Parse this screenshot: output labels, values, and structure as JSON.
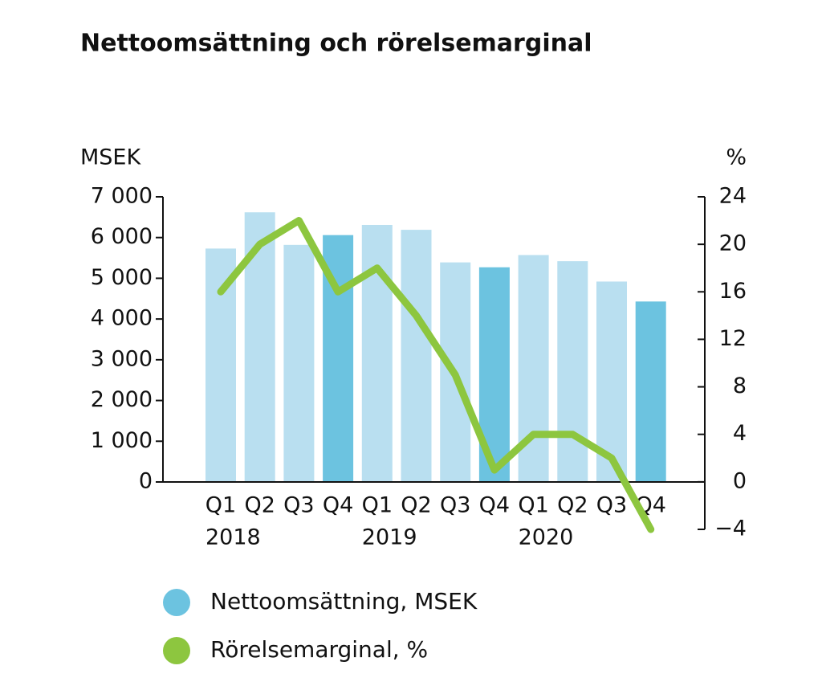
{
  "chart_data": {
    "type": "bar-line",
    "title": "Nettoomsättning och rörelsemarginal",
    "y_label": "MSEK",
    "y2_label": "%",
    "categories": [
      "Q1",
      "Q2",
      "Q3",
      "Q4",
      "Q1",
      "Q2",
      "Q3",
      "Q4",
      "Q1",
      "Q2",
      "Q3",
      "Q4"
    ],
    "groups": [
      "2018",
      "2019",
      "2020"
    ],
    "series": [
      {
        "name": "Nettoomsättning, MSEK",
        "type": "bar",
        "color": "#6cc3e0",
        "colors": [
          "#b9dff0",
          "#b9dff0",
          "#b9dff0",
          "#6cc3e0",
          "#b9dff0",
          "#b9dff0",
          "#b9dff0",
          "#6cc3e0",
          "#b9dff0",
          "#b9dff0",
          "#b9dff0",
          "#6cc3e0"
        ],
        "values": [
          5730,
          6620,
          5820,
          6060,
          6310,
          6190,
          5390,
          5270,
          5570,
          5420,
          4920,
          4430
        ]
      },
      {
        "name": "Rörelsemarginal, %",
        "type": "line",
        "axis": "y2",
        "color": "#8dc63f",
        "values": [
          16,
          20,
          22,
          16,
          18,
          14,
          9,
          1,
          4,
          4,
          2,
          -4
        ]
      }
    ],
    "ylim": [
      0,
      7000
    ],
    "yticks": [
      0,
      {
        "value": 1000,
        "label": "1 000"
      },
      {
        "value": 2000,
        "label": "2 000"
      },
      {
        "value": 3000,
        "label": "3 000"
      },
      {
        "value": 4000,
        "label": "4 000"
      },
      {
        "value": 5000,
        "label": "5 000"
      },
      {
        "value": 6000,
        "label": "6 000"
      },
      {
        "value": 7000,
        "label": "7 000"
      }
    ],
    "y2lim": [
      -4,
      24
    ],
    "y2ticks": [
      {
        "value": -4,
        "label": "−4"
      },
      0,
      4,
      8,
      12,
      16,
      20,
      24
    ]
  }
}
